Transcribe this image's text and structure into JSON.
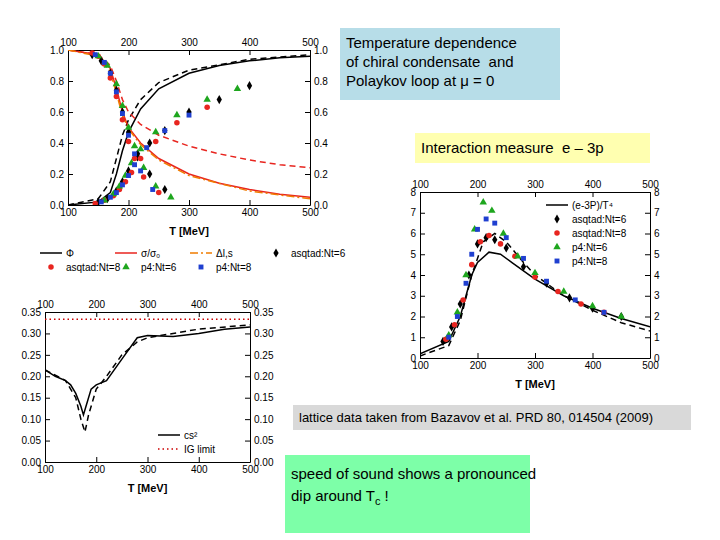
{
  "chart_data": [
    {
      "type": "line",
      "xlabel": "T [MeV]",
      "xlim": [
        100,
        500
      ],
      "xticks": [
        100,
        200,
        300,
        400,
        500
      ],
      "ylim": [
        0,
        1
      ],
      "yticks": [
        {
          "value": 0,
          "label": "0.0"
        },
        0.2,
        0.4,
        0.6,
        0.8,
        {
          "value": 1,
          "label": "1.0"
        }
      ],
      "legend": "bottom",
      "series": [
        {
          "name": "Φ",
          "type": "line",
          "color": "#000000",
          "line_style": "solid",
          "x": [
            100,
            150,
            170,
            180,
            190,
            200,
            220,
            250,
            300,
            350,
            400,
            450,
            500
          ],
          "values": [
            0,
            0.02,
            0.08,
            0.2,
            0.35,
            0.47,
            0.62,
            0.75,
            0.85,
            0.9,
            0.93,
            0.95,
            0.96
          ]
        },
        {
          "type": "line",
          "color": "#000000",
          "line_style": "dashed",
          "x": [
            100,
            150,
            170,
            180,
            190,
            200,
            220,
            250,
            300,
            400,
            500
          ],
          "values": [
            0,
            0.04,
            0.15,
            0.3,
            0.45,
            0.55,
            0.68,
            0.79,
            0.87,
            0.94,
            0.97
          ]
        },
        {
          "name": "σ/σ₀",
          "type": "line",
          "color": "#e8251f",
          "line_style": "solid",
          "x": [
            100,
            150,
            170,
            180,
            190,
            200,
            220,
            250,
            300,
            350,
            400,
            450,
            500
          ],
          "values": [
            1,
            0.97,
            0.88,
            0.75,
            0.6,
            0.5,
            0.4,
            0.3,
            0.2,
            0.14,
            0.1,
            0.07,
            0.05
          ]
        },
        {
          "type": "line",
          "color": "#e8251f",
          "line_style": "dashed",
          "x": [
            100,
            150,
            170,
            180,
            190,
            200,
            220,
            250,
            300,
            350,
            400,
            450,
            500
          ],
          "values": [
            1,
            0.97,
            0.9,
            0.8,
            0.68,
            0.6,
            0.52,
            0.45,
            0.38,
            0.33,
            0.29,
            0.26,
            0.24
          ]
        },
        {
          "name": "Δl,s",
          "type": "line",
          "color": "#f07c00",
          "line_style": "dashdot",
          "x": [
            100,
            150,
            170,
            180,
            190,
            200,
            220,
            250,
            300,
            400,
            500
          ],
          "values": [
            1,
            0.96,
            0.86,
            0.72,
            0.58,
            0.49,
            0.39,
            0.29,
            0.19,
            0.09,
            0.04
          ]
        },
        {
          "name": "asqtad:Nt=6",
          "type": "scatter",
          "marker": "diamond",
          "color": "#000000",
          "x": [
            150,
            165,
            180,
            190,
            200,
            215,
            235,
            260,
            300,
            350,
            400,
            140,
            155,
            170,
            180,
            190,
            200,
            215,
            235,
            260
          ],
          "values": [
            0.02,
            0.04,
            0.09,
            0.15,
            0.22,
            0.31,
            0.4,
            0.48,
            0.6,
            0.68,
            0.77,
            0.97,
            0.93,
            0.85,
            0.74,
            0.6,
            0.47,
            0.33,
            0.2,
            0.1
          ]
        },
        {
          "name": "asqtad:Nt=8",
          "type": "scatter",
          "marker": "circle",
          "color": "#e8251f",
          "x": [
            145,
            160,
            175,
            185,
            195,
            205,
            220,
            245,
            280,
            330,
            140,
            150,
            160,
            170,
            180,
            190,
            200,
            210,
            225,
            250
          ],
          "values": [
            0.01,
            0.03,
            0.06,
            0.1,
            0.15,
            0.21,
            0.3,
            0.41,
            0.53,
            0.63,
            0.98,
            0.96,
            0.91,
            0.82,
            0.7,
            0.55,
            0.41,
            0.3,
            0.18,
            0.08
          ]
        },
        {
          "name": "p4:Nt=6",
          "type": "scatter",
          "marker": "triangle",
          "color": "#1ea61e",
          "x": [
            160,
            175,
            185,
            195,
            205,
            220,
            245,
            280,
            330,
            380,
            150,
            165,
            180,
            190,
            200,
            210,
            225,
            245,
            270
          ],
          "values": [
            0.03,
            0.07,
            0.12,
            0.19,
            0.27,
            0.36,
            0.47,
            0.58,
            0.68,
            0.75,
            0.96,
            0.9,
            0.78,
            0.64,
            0.5,
            0.38,
            0.24,
            0.12,
            0.05
          ]
        },
        {
          "name": "p4:Nt=8",
          "type": "scatter",
          "marker": "square",
          "color": "#1f3fd0",
          "x": [
            155,
            170,
            180,
            190,
            200,
            210,
            230,
            260,
            300,
            145,
            160,
            170,
            180,
            190,
            200,
            210,
            220,
            240
          ],
          "values": [
            0.02,
            0.05,
            0.08,
            0.13,
            0.19,
            0.26,
            0.37,
            0.48,
            0.58,
            0.97,
            0.92,
            0.85,
            0.73,
            0.59,
            0.45,
            0.33,
            0.22,
            0.1
          ]
        }
      ]
    },
    {
      "type": "line",
      "xlabel": "T [MeV]",
      "xlim": [
        100,
        500
      ],
      "xticks": [
        100,
        200,
        300,
        400,
        500
      ],
      "ylim": [
        0,
        0.35
      ],
      "yticks": [
        {
          "value": 0,
          "label": "0.00"
        },
        0.05,
        {
          "value": 0.1,
          "label": "0.10"
        },
        0.15,
        {
          "value": 0.2,
          "label": "0.20"
        },
        0.25,
        {
          "value": 0.3,
          "label": "0.30"
        },
        0.35
      ],
      "legend": "lower right",
      "series": [
        {
          "name": "cs²",
          "type": "line",
          "color": "#000000",
          "line_style": "solid",
          "x": [
            100,
            120,
            140,
            150,
            160,
            170,
            175,
            180,
            190,
            200,
            220,
            250,
            280,
            300,
            350,
            400,
            450,
            500
          ],
          "values": [
            0.215,
            0.2,
            0.19,
            0.18,
            0.16,
            0.13,
            0.11,
            0.13,
            0.17,
            0.18,
            0.19,
            0.24,
            0.29,
            0.295,
            0.293,
            0.3,
            0.31,
            0.315
          ]
        },
        {
          "type": "line",
          "color": "#000000",
          "line_style": "dashed",
          "x": [
            100,
            140,
            160,
            170,
            178,
            185,
            200,
            220,
            250,
            280,
            300,
            350,
            400,
            500
          ],
          "values": [
            0.215,
            0.19,
            0.15,
            0.1,
            0.07,
            0.11,
            0.17,
            0.2,
            0.25,
            0.28,
            0.29,
            0.3,
            0.31,
            0.32
          ]
        },
        {
          "name": "IG limit",
          "type": "line",
          "color": "#cc0000",
          "line_style": "dotted",
          "x": [
            100,
            500
          ],
          "values": [
            0.333,
            0.333
          ]
        }
      ]
    },
    {
      "type": "line",
      "xlabel": "T [MeV]",
      "xlim": [
        100,
        500
      ],
      "xticks": [
        100,
        200,
        300,
        400,
        500
      ],
      "ylim": [
        0,
        8
      ],
      "yticks": [
        0,
        1,
        2,
        3,
        4,
        5,
        6,
        7,
        8
      ],
      "legend": "upper right",
      "series": [
        {
          "name": "(e-3P)/T⁴",
          "type": "line",
          "color": "#000000",
          "line_style": "solid",
          "x": [
            100,
            150,
            170,
            180,
            190,
            200,
            220,
            240,
            260,
            300,
            350,
            400,
            450,
            500
          ],
          "values": [
            0.2,
            0.8,
            2.0,
            3.0,
            4.0,
            4.6,
            5.1,
            5.0,
            4.6,
            3.8,
            3.0,
            2.4,
            1.9,
            1.5
          ]
        },
        {
          "type": "line",
          "color": "#000000",
          "line_style": "dashed",
          "x": [
            100,
            150,
            170,
            190,
            210,
            230,
            250,
            280,
            300,
            350,
            400,
            450,
            500
          ],
          "values": [
            0.1,
            0.6,
            1.8,
            4.0,
            5.6,
            6.0,
            5.6,
            4.6,
            4.0,
            3.0,
            2.3,
            1.7,
            1.3
          ]
        },
        {
          "name": "asqtad:Nt=6",
          "type": "scatter",
          "marker": "diamond",
          "color": "#000000",
          "x": [
            140,
            155,
            170,
            185,
            200,
            215,
            230,
            250,
            280,
            320,
            360,
            400,
            450
          ],
          "values": [
            0.8,
            1.5,
            2.6,
            4.0,
            5.5,
            5.8,
            5.7,
            5.3,
            4.4,
            3.6,
            2.9,
            2.4,
            2.0
          ]
        },
        {
          "name": "asqtad:Nt=8",
          "type": "scatter",
          "marker": "circle",
          "color": "#e8251f",
          "x": [
            145,
            160,
            175,
            190,
            205,
            220,
            240,
            265,
            300,
            340,
            380,
            420
          ],
          "values": [
            0.9,
            1.6,
            2.8,
            4.5,
            5.6,
            5.9,
            5.5,
            4.9,
            3.9,
            3.2,
            2.6,
            2.2
          ]
        },
        {
          "name": "p4:Nt=6",
          "type": "scatter",
          "marker": "triangle",
          "color": "#1ea61e",
          "x": [
            150,
            165,
            180,
            195,
            210,
            225,
            245,
            270,
            300,
            350,
            400,
            450
          ],
          "values": [
            1.1,
            2.2,
            4.0,
            6.2,
            7.5,
            7.1,
            6.0,
            4.9,
            4.1,
            3.2,
            2.5,
            2.0
          ]
        },
        {
          "name": "p4:Nt=8",
          "type": "scatter",
          "marker": "square",
          "color": "#1f3fd0",
          "x": [
            150,
            165,
            180,
            190,
            200,
            215,
            230,
            250,
            280,
            320,
            370,
            420
          ],
          "values": [
            1.0,
            2.0,
            3.6,
            5.0,
            6.2,
            6.7,
            6.5,
            5.8,
            4.8,
            3.7,
            2.8,
            2.2
          ]
        }
      ]
    }
  ],
  "text_boxes": [
    {
      "color": "#b7dde8",
      "lines": [
        [
          "Temperature dependence"
        ],
        [
          "of chiral condensate  and"
        ],
        [
          "Polaykov loop at μ = 0"
        ]
      ]
    },
    {
      "color": "#ffffb0",
      "lines": [
        [
          "Interaction measure  e – 3p"
        ]
      ]
    },
    {
      "color": "#d9d9d9",
      "lines": [
        [
          "lattice data taken from Bazavov et al. PRD 80, 014504 (2009)"
        ]
      ]
    },
    {
      "color": "#7dffa8",
      "lines": [
        [
          "speed of sound shows a pronounced"
        ],
        [
          "dip around T",
          {
            "sub": "c"
          },
          " !"
        ]
      ]
    }
  ]
}
